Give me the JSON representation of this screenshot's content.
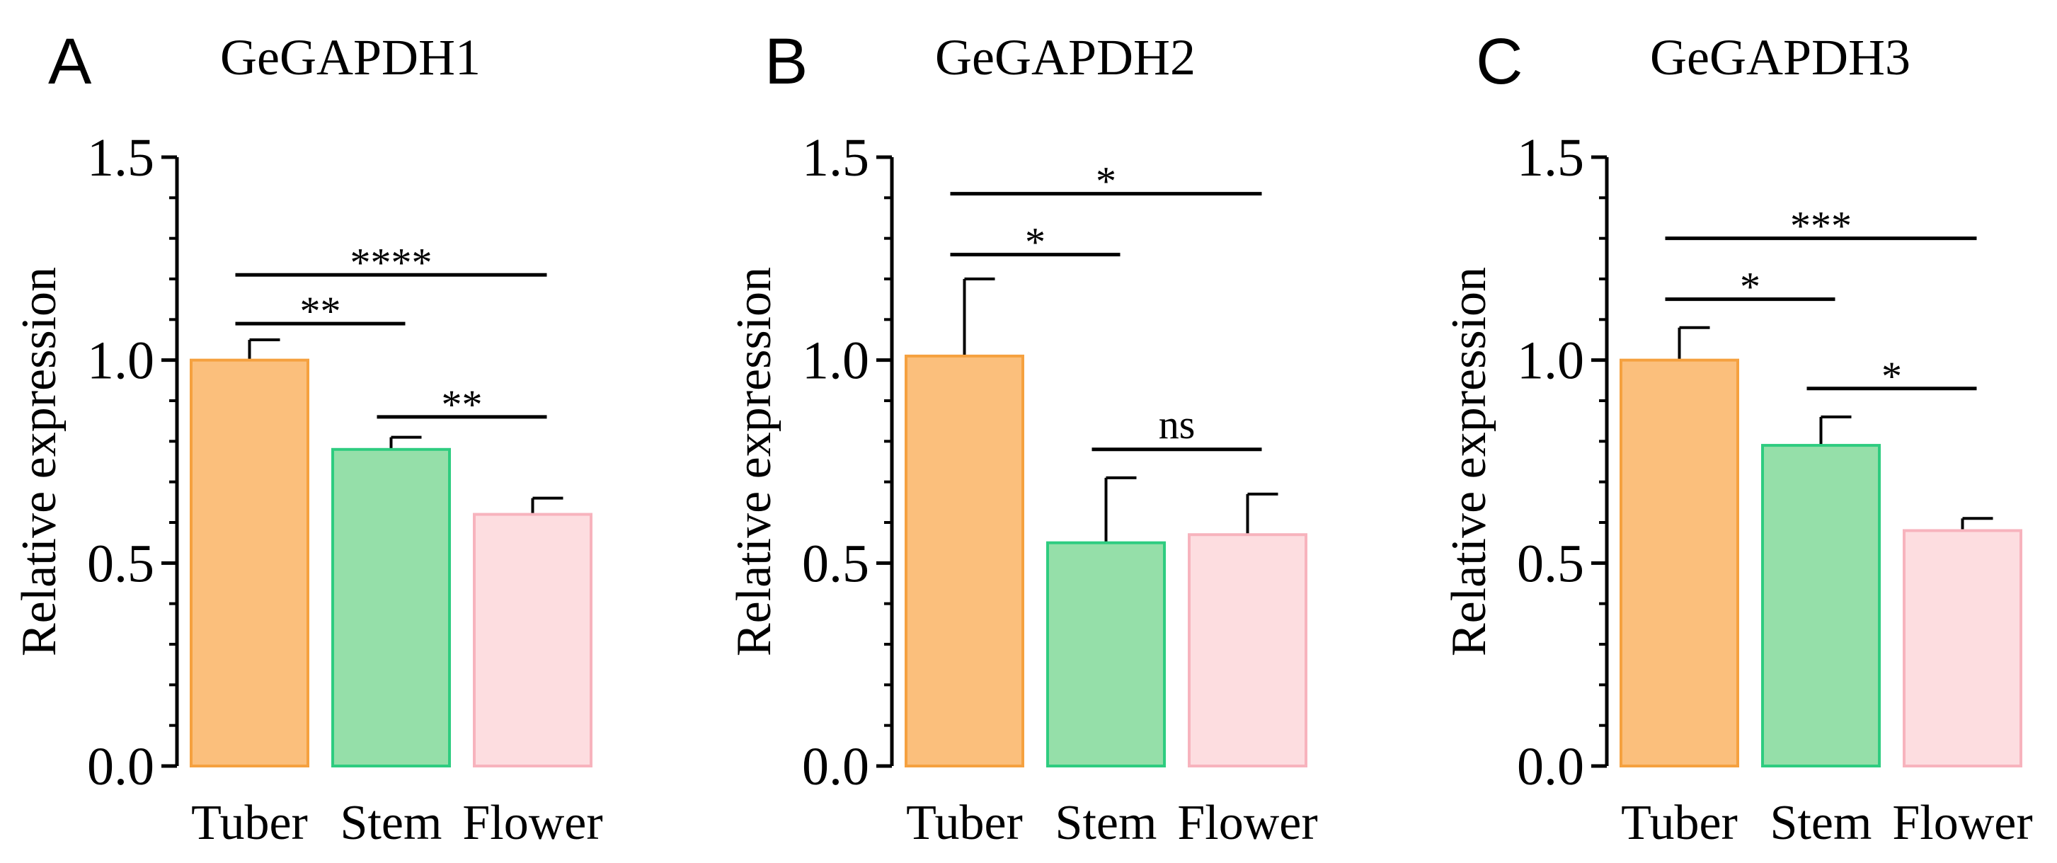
{
  "chart_data": [
    {
      "type": "bar",
      "panel": "A",
      "title": "GeGAPDH1",
      "ylabel": "Relative expression",
      "ylim": [
        0,
        1.5
      ],
      "yticks": [
        "0.0",
        "0.5",
        "1.0",
        "1.5"
      ],
      "categories": [
        "Tuber",
        "Stem",
        "Flower"
      ],
      "values": [
        1.0,
        0.78,
        0.62
      ],
      "errors": [
        0.05,
        0.03,
        0.04
      ],
      "colors": {
        "fill": [
          "#FBBF7C",
          "#95DFA9",
          "#FDDDE0"
        ],
        "stroke": [
          "#F5A13F",
          "#2ECC80",
          "#F7B3BD"
        ]
      },
      "significance": [
        {
          "from": 0,
          "to": 2,
          "label": "****",
          "y": 1.21
        },
        {
          "from": 0,
          "to": 1,
          "label": "**",
          "y": 1.09
        },
        {
          "from": 1,
          "to": 2,
          "label": "**",
          "y": 0.86
        }
      ]
    },
    {
      "type": "bar",
      "panel": "B",
      "title": "GeGAPDH2",
      "ylabel": "Relative expression",
      "ylim": [
        0,
        1.5
      ],
      "yticks": [
        "0.0",
        "0.5",
        "1.0",
        "1.5"
      ],
      "categories": [
        "Tuber",
        "Stem",
        "Flower"
      ],
      "values": [
        1.01,
        0.55,
        0.57
      ],
      "errors": [
        0.19,
        0.16,
        0.1
      ],
      "colors": {
        "fill": [
          "#FBBF7C",
          "#95DFA9",
          "#FDDDE0"
        ],
        "stroke": [
          "#F5A13F",
          "#2ECC80",
          "#F7B3BD"
        ]
      },
      "significance": [
        {
          "from": 0,
          "to": 2,
          "label": "*",
          "y": 1.41
        },
        {
          "from": 0,
          "to": 1,
          "label": "*",
          "y": 1.26
        },
        {
          "from": 1,
          "to": 2,
          "label": "ns",
          "y": 0.78
        }
      ]
    },
    {
      "type": "bar",
      "panel": "C",
      "title": "GeGAPDH3",
      "ylabel": "Relative expression",
      "ylim": [
        0,
        1.5
      ],
      "yticks": [
        "0.0",
        "0.5",
        "1.0",
        "1.5"
      ],
      "categories": [
        "Tuber",
        "Stem",
        "Flower"
      ],
      "values": [
        1.0,
        0.79,
        0.58
      ],
      "errors": [
        0.08,
        0.07,
        0.03
      ],
      "colors": {
        "fill": [
          "#FBBF7C",
          "#95DFA9",
          "#FDDDE0"
        ],
        "stroke": [
          "#F5A13F",
          "#2ECC80",
          "#F7B3BD"
        ]
      },
      "significance": [
        {
          "from": 0,
          "to": 2,
          "label": "***",
          "y": 1.3
        },
        {
          "from": 0,
          "to": 1,
          "label": "*",
          "y": 1.15
        },
        {
          "from": 1,
          "to": 2,
          "label": "*",
          "y": 0.93
        }
      ]
    }
  ]
}
